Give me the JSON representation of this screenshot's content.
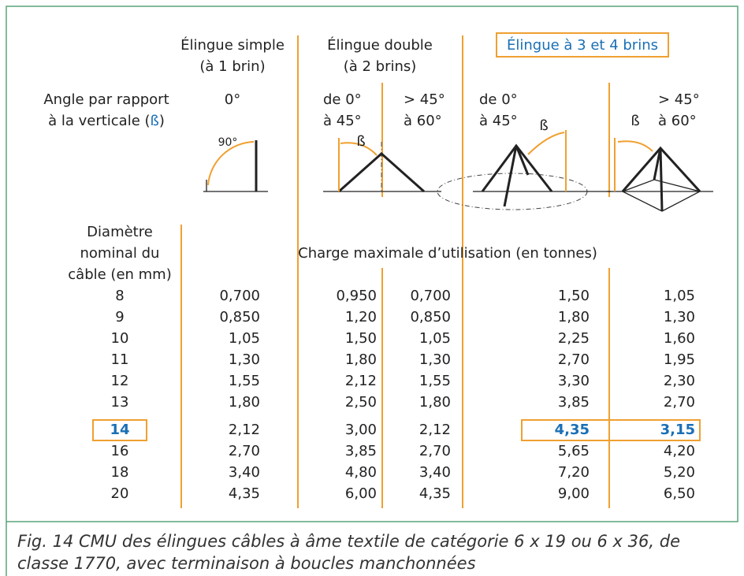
{
  "header": {
    "single": [
      "Élingue simple",
      "(à 1 brin)"
    ],
    "double": [
      "Élingue double",
      "(à 2 brins)"
    ],
    "multi": "Élingue à 3 et 4 brins"
  },
  "angle_label": {
    "line1": "Angle par rapport",
    "line2_before": "à la verticale (",
    "beta": "ß",
    "line2_after": ")"
  },
  "angles": [
    [
      "0°"
    ],
    [
      "de 0°",
      "à 45°"
    ],
    [
      "> 45°",
      "à 60°"
    ],
    [
      "de 0°",
      "à 45°"
    ],
    [
      "> 45°",
      "à 60°"
    ]
  ],
  "diagram_labels": [
    "90°",
    "ß",
    "ß",
    "ß"
  ],
  "row_header": [
    "Diamètre",
    "nominal du",
    "câble (en mm)"
  ],
  "span_header": "Charge maximale d’utilisation (en tonnes)",
  "table": {
    "rows": [
      [
        "8",
        "0,700",
        "0,950",
        "0,700",
        "1,50",
        "1,05"
      ],
      [
        "9",
        "0,850",
        "1,20",
        "0,850",
        "1,80",
        "1,30"
      ],
      [
        "10",
        "1,05",
        "1,50",
        "1,05",
        "2,25",
        "1,60"
      ],
      [
        "11",
        "1,30",
        "1,80",
        "1,30",
        "2,70",
        "1,95"
      ],
      [
        "12",
        "1,55",
        "2,12",
        "1,55",
        "3,30",
        "2,30"
      ],
      [
        "13",
        "1,80",
        "2,50",
        "1,80",
        "3,85",
        "2,70"
      ],
      [
        "14",
        "2,12",
        "3,00",
        "2,12",
        "4,35",
        "3,15"
      ],
      [
        "16",
        "2,70",
        "3,85",
        "2,70",
        "5,65",
        "4,20"
      ],
      [
        "18",
        "3,40",
        "4,80",
        "3,40",
        "7,20",
        "5,20"
      ],
      [
        "20",
        "4,35",
        "6,00",
        "4,35",
        "9,00",
        "6,50"
      ]
    ]
  },
  "caption": [
    "Fig. 14 CMU des élingues câbles à âme textile de catégorie 6 x 19 ou 6 x 36, de",
    "classe 1770, avec terminaison à boucles manchonnées"
  ]
}
